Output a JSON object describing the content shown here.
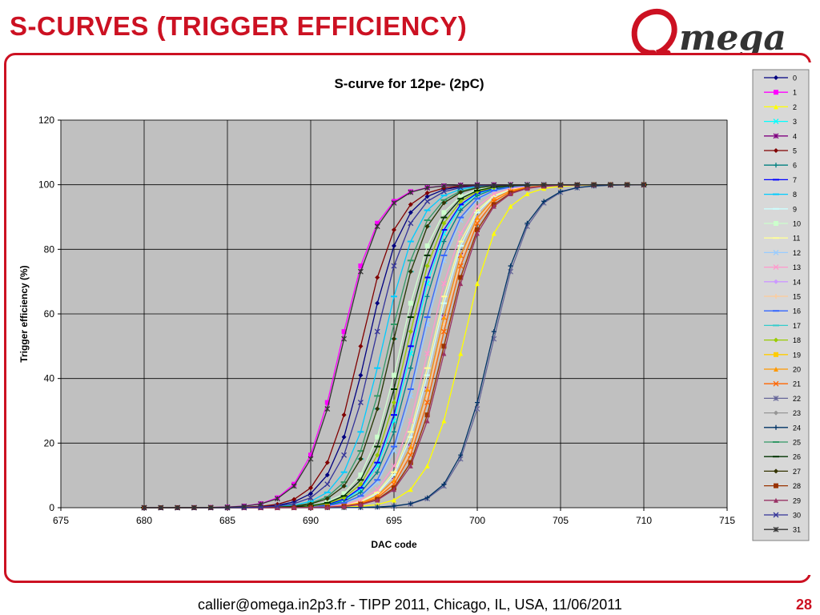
{
  "slide": {
    "title": "S-CURVES (TRIGGER EFFICIENCY)",
    "logo_text": "Omega",
    "footer": "callier@omega.in2p3.fr - TIPP 2011, Chicago, IL, USA, 11/06/2011",
    "page_number": "28",
    "accent_color": "#cc1122"
  },
  "chart_data": {
    "type": "line",
    "title": "S-curve for 12pe- (2pC)",
    "xlabel": "DAC code",
    "ylabel": "Trigger efficiency (%)",
    "xlim": [
      675,
      715
    ],
    "ylim": [
      0,
      120
    ],
    "x_ticks": [
      675,
      680,
      685,
      690,
      695,
      700,
      705,
      710,
      715
    ],
    "y_ticks": [
      0,
      20,
      40,
      60,
      80,
      100,
      120
    ],
    "grid": true,
    "plot_background": "#c0c0c0",
    "legend_position": "right",
    "x_range_shown": [
      680,
      710
    ],
    "curve_width": 1.1,
    "series": [
      {
        "name": "0",
        "color": "#000080",
        "marker": "diamond",
        "midpoint": 693.4
      },
      {
        "name": "1",
        "color": "#ff00ff",
        "marker": "square",
        "midpoint": 691.8
      },
      {
        "name": "2",
        "color": "#ffff00",
        "marker": "triangle",
        "midpoint": 699.1
      },
      {
        "name": "3",
        "color": "#00ffff",
        "marker": "x",
        "midpoint": 696.1
      },
      {
        "name": "4",
        "color": "#800080",
        "marker": "star",
        "midpoint": 697.6
      },
      {
        "name": "5",
        "color": "#800000",
        "marker": "diamond",
        "midpoint": 693.0
      },
      {
        "name": "6",
        "color": "#008080",
        "marker": "plus",
        "midpoint": 696.3
      },
      {
        "name": "7",
        "color": "#0000ff",
        "marker": "dash",
        "midpoint": 696.0
      },
      {
        "name": "8",
        "color": "#00ccff",
        "marker": "dash",
        "midpoint": 694.3
      },
      {
        "name": "9",
        "color": "#ccffff",
        "marker": "dash",
        "midpoint": 697.4
      },
      {
        "name": "10",
        "color": "#ccffcc",
        "marker": "square",
        "midpoint": 695.4
      },
      {
        "name": "11",
        "color": "#ffff99",
        "marker": "dash",
        "midpoint": 697.3
      },
      {
        "name": "12",
        "color": "#99ccff",
        "marker": "x",
        "midpoint": 696.7
      },
      {
        "name": "13",
        "color": "#ff99cc",
        "marker": "x",
        "midpoint": 697.1
      },
      {
        "name": "14",
        "color": "#cc99ff",
        "marker": "diamond",
        "midpoint": 697.6
      },
      {
        "name": "15",
        "color": "#ffcc99",
        "marker": "plus",
        "midpoint": 697.7
      },
      {
        "name": "16",
        "color": "#3366ff",
        "marker": "dash",
        "midpoint": 696.6
      },
      {
        "name": "17",
        "color": "#33cccc",
        "marker": "dash",
        "midpoint": 694.9
      },
      {
        "name": "18",
        "color": "#99cc00",
        "marker": "diamond",
        "midpoint": 695.8
      },
      {
        "name": "19",
        "color": "#ffcc00",
        "marker": "square",
        "midpoint": 698.0
      },
      {
        "name": "20",
        "color": "#ff9900",
        "marker": "triangle",
        "midpoint": 697.6
      },
      {
        "name": "21",
        "color": "#ff6600",
        "marker": "x",
        "midpoint": 697.8
      },
      {
        "name": "22",
        "color": "#666699",
        "marker": "star",
        "midpoint": 700.9
      },
      {
        "name": "23",
        "color": "#969696",
        "marker": "diamond",
        "midpoint": 698.0
      },
      {
        "name": "24",
        "color": "#003366",
        "marker": "plus",
        "midpoint": 700.8
      },
      {
        "name": "25",
        "color": "#339966",
        "marker": "dash",
        "midpoint": 694.7
      },
      {
        "name": "26",
        "color": "#003300",
        "marker": "dash",
        "midpoint": 695.6
      },
      {
        "name": "27",
        "color": "#333300",
        "marker": "diamond",
        "midpoint": 694.9
      },
      {
        "name": "28",
        "color": "#993300",
        "marker": "square",
        "midpoint": 698.0
      },
      {
        "name": "29",
        "color": "#993366",
        "marker": "triangle",
        "midpoint": 698.1
      },
      {
        "name": "30",
        "color": "#333399",
        "marker": "x",
        "midpoint": 693.8
      },
      {
        "name": "31",
        "color": "#333333",
        "marker": "star",
        "midpoint": 691.9
      }
    ]
  }
}
